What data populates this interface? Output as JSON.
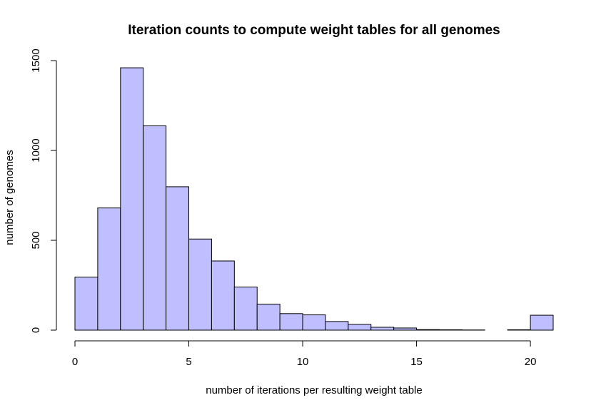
{
  "chart_data": {
    "type": "bar",
    "title": "Iteration counts to compute weight tables for all genomes",
    "xlabel": "number of iterations per resulting weight table",
    "ylabel": "number of genomes",
    "bar_color": "#bfbfff",
    "edge_color": "#000000",
    "xlim": [
      0,
      21
    ],
    "ylim": [
      0,
      1500
    ],
    "x_ticks": [
      0,
      5,
      10,
      15,
      20
    ],
    "y_ticks": [
      0,
      500,
      1000,
      1500
    ],
    "bins": [
      {
        "x0": 0,
        "x1": 1,
        "count": 295
      },
      {
        "x0": 1,
        "x1": 2,
        "count": 680
      },
      {
        "x0": 2,
        "x1": 3,
        "count": 1460
      },
      {
        "x0": 3,
        "x1": 4,
        "count": 1137
      },
      {
        "x0": 4,
        "x1": 5,
        "count": 798
      },
      {
        "x0": 5,
        "x1": 6,
        "count": 507
      },
      {
        "x0": 6,
        "x1": 7,
        "count": 385
      },
      {
        "x0": 7,
        "x1": 8,
        "count": 240
      },
      {
        "x0": 8,
        "x1": 9,
        "count": 145
      },
      {
        "x0": 9,
        "x1": 10,
        "count": 92
      },
      {
        "x0": 10,
        "x1": 11,
        "count": 85
      },
      {
        "x0": 11,
        "x1": 12,
        "count": 48
      },
      {
        "x0": 12,
        "x1": 13,
        "count": 32
      },
      {
        "x0": 13,
        "x1": 14,
        "count": 16
      },
      {
        "x0": 14,
        "x1": 15,
        "count": 12
      },
      {
        "x0": 15,
        "x1": 16,
        "count": 3
      },
      {
        "x0": 16,
        "x1": 17,
        "count": 2
      },
      {
        "x0": 17,
        "x1": 18,
        "count": 1
      },
      {
        "x0": 18,
        "x1": 19,
        "count": 0
      },
      {
        "x0": 19,
        "x1": 20,
        "count": 2
      },
      {
        "x0": 20,
        "x1": 21,
        "count": 83
      }
    ]
  }
}
